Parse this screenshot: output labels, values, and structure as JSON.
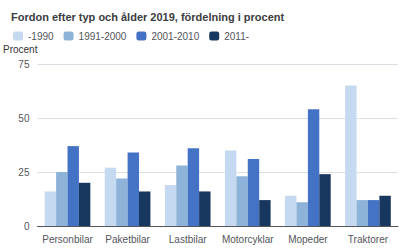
{
  "chart_data": {
    "type": "bar",
    "title": "Fordon efter typ och ålder 2019, fördelning i procent",
    "ylabel": "Procent",
    "categories": [
      "Personbilar",
      "Paketbilar",
      "Lastbilar",
      "Motorcyklar",
      "Mopeder",
      "Traktorer"
    ],
    "series": [
      {
        "name": "-1990",
        "color": "#c5d9f1",
        "values": [
          16,
          27,
          19,
          35,
          14,
          65
        ]
      },
      {
        "name": "1991-2000",
        "color": "#8db3d8",
        "values": [
          25,
          22,
          28,
          23,
          11,
          12
        ]
      },
      {
        "name": "2001-2010",
        "color": "#4472c4",
        "values": [
          37,
          34,
          36,
          31,
          54,
          12
        ]
      },
      {
        "name": "2011-",
        "color": "#17375e",
        "values": [
          20,
          16,
          16,
          12,
          24,
          14
        ]
      }
    ],
    "ylim": [
      0,
      75
    ],
    "yticks": [
      0,
      25,
      50,
      75
    ],
    "grid": true,
    "legend": "upper left"
  }
}
